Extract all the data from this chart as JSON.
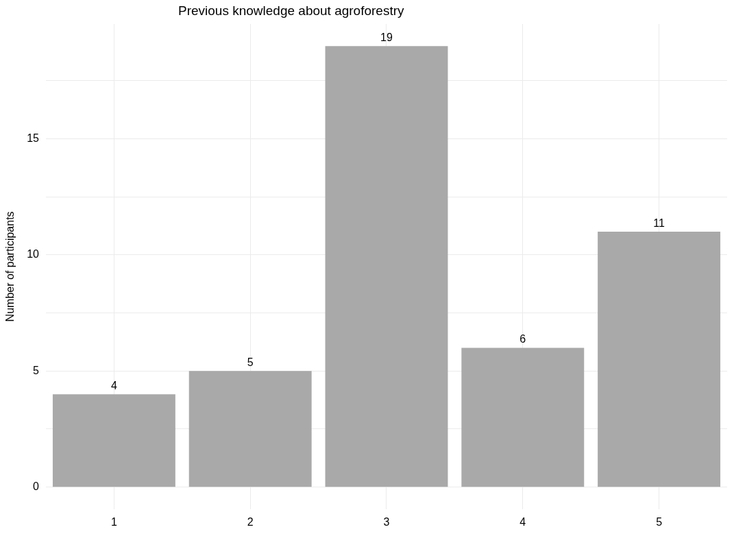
{
  "chart_data": {
    "type": "bar",
    "title": "Previous knowledge about agroforestry",
    "ylabel": "Number of participants",
    "categories": [
      "1",
      "2",
      "3",
      "4",
      "5"
    ],
    "values": [
      4,
      5,
      19,
      6,
      11
    ],
    "color": "#a9a9a9",
    "ylim": [
      -0.95,
      19.95
    ],
    "yticks": [
      0,
      {
        "value": 2.5,
        "label": null
      },
      5,
      {
        "value": 7.5,
        "label": null
      },
      10,
      {
        "value": 12.5,
        "label": null
      },
      15,
      {
        "value": 17.5,
        "label": null
      }
    ],
    "grid": true,
    "data_labels": true,
    "legend": false
  }
}
